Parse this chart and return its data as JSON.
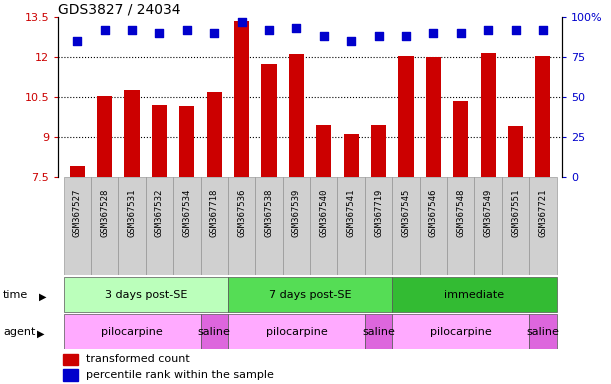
{
  "title": "GDS3827 / 24034",
  "samples": [
    "GSM367527",
    "GSM367528",
    "GSM367531",
    "GSM367532",
    "GSM367534",
    "GSM367718",
    "GSM367536",
    "GSM367538",
    "GSM367539",
    "GSM367540",
    "GSM367541",
    "GSM367719",
    "GSM367545",
    "GSM367546",
    "GSM367548",
    "GSM367549",
    "GSM367551",
    "GSM367721"
  ],
  "bar_values": [
    7.9,
    10.55,
    10.75,
    10.2,
    10.15,
    10.7,
    13.35,
    11.75,
    12.1,
    9.45,
    9.1,
    9.45,
    12.05,
    12.0,
    10.35,
    12.15,
    9.4,
    12.05
  ],
  "dot_values_pct": [
    85,
    92,
    92,
    90,
    92,
    90,
    97,
    92,
    93,
    88,
    85,
    88,
    88,
    90,
    90,
    92,
    92,
    92
  ],
  "ylim_left": [
    7.5,
    13.5
  ],
  "ylim_right": [
    0,
    100
  ],
  "yticks_left": [
    7.5,
    9.0,
    10.5,
    12.0,
    13.5
  ],
  "ytick_labels_left": [
    "7.5",
    "9",
    "10.5",
    "12",
    "13.5"
  ],
  "yticks_right": [
    0,
    25,
    50,
    75,
    100
  ],
  "ytick_labels_right": [
    "0",
    "25",
    "50",
    "75",
    "100%"
  ],
  "bar_color": "#cc0000",
  "dot_color": "#0000cc",
  "background_color": "#ffffff",
  "plot_bg_color": "#ffffff",
  "sample_row_bg": "#d0d0d0",
  "time_groups": [
    {
      "label": "3 days post-SE",
      "start": 0,
      "end": 5,
      "color": "#bbffbb"
    },
    {
      "label": "7 days post-SE",
      "start": 6,
      "end": 11,
      "color": "#55dd55"
    },
    {
      "label": "immediate",
      "start": 12,
      "end": 17,
      "color": "#33bb33"
    }
  ],
  "agent_groups": [
    {
      "label": "pilocarpine",
      "start": 0,
      "end": 4,
      "color": "#ffaaff"
    },
    {
      "label": "saline",
      "start": 5,
      "end": 5,
      "color": "#dd66dd"
    },
    {
      "label": "pilocarpine",
      "start": 6,
      "end": 10,
      "color": "#ffaaff"
    },
    {
      "label": "saline",
      "start": 11,
      "end": 11,
      "color": "#dd66dd"
    },
    {
      "label": "pilocarpine",
      "start": 12,
      "end": 16,
      "color": "#ffaaff"
    },
    {
      "label": "saline",
      "start": 17,
      "end": 17,
      "color": "#dd66dd"
    }
  ],
  "legend_items": [
    {
      "color": "#cc0000",
      "label": "transformed count"
    },
    {
      "color": "#0000cc",
      "label": "percentile rank within the sample"
    }
  ],
  "dot_size": 30,
  "bar_width": 0.55,
  "grid_color": "#000000",
  "tick_label_color_left": "#cc0000",
  "tick_label_color_right": "#0000cc",
  "title_fontsize": 10,
  "sample_fontsize": 6.5,
  "group_fontsize": 8
}
